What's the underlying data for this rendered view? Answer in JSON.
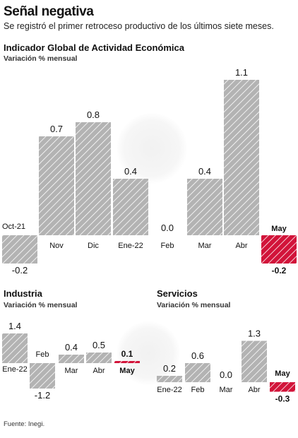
{
  "header": {
    "headline": "Señal negativa",
    "subtitle": "Se registró el primer retroceso productivo de los últimos siete meses."
  },
  "source": "Fuente: Inegi.",
  "colors": {
    "bar": "#b3b3b3",
    "bar_hatch": "#ffffff",
    "highlight": "#d2143a",
    "text": "#111111"
  },
  "chart_data": [
    {
      "type": "bar",
      "title": "Indicador Global de Actividad Económica",
      "ylabel": "Variación % mensual",
      "categories": [
        "Oct-21",
        "Nov",
        "Dic",
        "Ene-22",
        "Feb",
        "Mar",
        "Abr",
        "May"
      ],
      "values": [
        -0.2,
        0.7,
        0.8,
        0.4,
        0.0,
        0.4,
        1.1,
        -0.2
      ],
      "value_labels": [
        "-0.2",
        "0.7",
        "0.8",
        "0.4",
        "0.0",
        "0.4",
        "1.1",
        "-0.2"
      ],
      "highlight": "May"
    },
    {
      "type": "bar",
      "title": "Industria",
      "ylabel": "Variación % mensual",
      "categories": [
        "Ene-22",
        "Feb",
        "Mar",
        "Abr",
        "May"
      ],
      "values": [
        1.4,
        -1.2,
        0.4,
        0.5,
        0.1
      ],
      "value_labels": [
        "1.4",
        "-1.2",
        "0.4",
        "0.5",
        "0.1"
      ],
      "highlight": "May"
    },
    {
      "type": "bar",
      "title": "Servicios",
      "ylabel": "Variación % mensual",
      "categories": [
        "Ene-22",
        "Feb",
        "Mar",
        "Abr",
        "May"
      ],
      "values": [
        0.2,
        0.6,
        0.0,
        1.3,
        -0.3
      ],
      "value_labels": [
        "0.2",
        "0.6",
        "0.0",
        "1.3",
        "-0.3"
      ],
      "highlight": "May"
    }
  ]
}
